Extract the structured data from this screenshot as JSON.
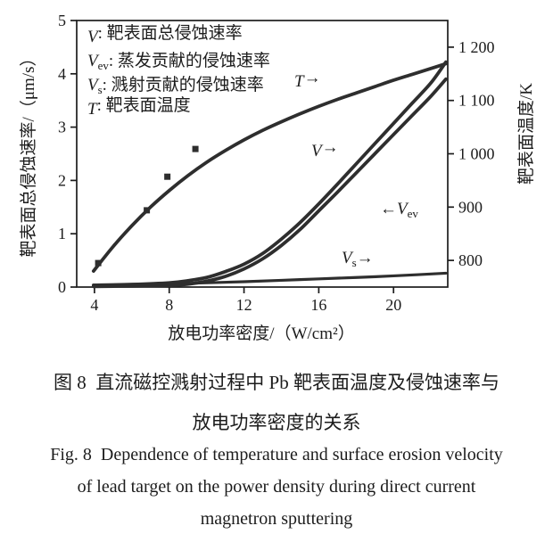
{
  "colors": {
    "curve": "#2e2e2e",
    "text": "#1c1c1c"
  },
  "legend": {
    "line1": {
      "sym": "V",
      "sub": "",
      "rest": ": 靶表面总侵蚀速率"
    },
    "line2": {
      "sym": "V",
      "sub": "ev",
      "rest": ": 蒸发贡献的侵蚀速率"
    },
    "line3": {
      "sym": "V",
      "sub": "s",
      "rest": ": 溅射贡献的侵蚀速率"
    },
    "line4": {
      "sym": "T",
      "sub": "",
      "rest": ": 靶表面温度"
    }
  },
  "curve_labels": {
    "T": {
      "pre": "",
      "sym": "T",
      "sub": "",
      "post": "→"
    },
    "V": {
      "pre": "",
      "sym": "V",
      "sub": "",
      "post": "→"
    },
    "Vev": {
      "pre": "←",
      "sym": "V",
      "sub": "ev",
      "post": ""
    },
    "Vs": {
      "pre": "",
      "sym": "V",
      "sub": "s",
      "post": "→"
    }
  },
  "captions": {
    "zh_line1": "图 8  直流磁控溅射过程中 Pb 靶表面温度及侵蚀速率与",
    "zh_line2": "放电功率密度的关系",
    "en_line1": "Fig. 8  Dependence of temperature and surface erosion velocity",
    "en_line2": "of lead target on the power density during direct current",
    "en_line3": "magnetron sputtering"
  },
  "chart_data": {
    "type": "line",
    "x_label": "放电功率密度/（W/cm²）",
    "y_left_label": "靶表面总侵蚀速率/（μm/s）",
    "y_right_label": "靶表面温度/K",
    "grid": false,
    "legend_position": "top-left-inside",
    "x_axis": {
      "min": 3.05,
      "max": 22.9,
      "ticks": [
        {
          "v": 4,
          "label": "4"
        },
        {
          "v": 8,
          "label": "8"
        },
        {
          "v": 12,
          "label": "12"
        },
        {
          "v": 16,
          "label": "16"
        },
        {
          "v": 20,
          "label": "20"
        }
      ]
    },
    "y_left_axis": {
      "min": 0,
      "max": 5,
      "ticks": [
        {
          "v": 0,
          "label": "0"
        },
        {
          "v": 1,
          "label": "1"
        },
        {
          "v": 2,
          "label": "2"
        },
        {
          "v": 3,
          "label": "3"
        },
        {
          "v": 4,
          "label": "4"
        },
        {
          "v": 5,
          "label": "5"
        }
      ]
    },
    "y_right_axis": {
      "min": 750,
      "max": 1250,
      "ticks": [
        {
          "v": 800,
          "label": "800"
        },
        {
          "v": 900,
          "label": "900"
        },
        {
          "v": 1000,
          "label": "1 000"
        },
        {
          "v": 1100,
          "label": "1 100"
        },
        {
          "v": 1200,
          "label": "1 200"
        }
      ]
    },
    "series": [
      {
        "name": "T-surface-temperature",
        "axis": "right",
        "width": 3.8,
        "points": [
          [
            3.95,
            780
          ],
          [
            5,
            826
          ],
          [
            6,
            865
          ],
          [
            7,
            900
          ],
          [
            8,
            931
          ],
          [
            9,
            959
          ],
          [
            10,
            984
          ],
          [
            11,
            1006
          ],
          [
            12,
            1026
          ],
          [
            13,
            1044
          ],
          [
            14,
            1060
          ],
          [
            15,
            1075
          ],
          [
            16,
            1089
          ],
          [
            17,
            1102
          ],
          [
            18,
            1114
          ],
          [
            19,
            1126
          ],
          [
            20,
            1138
          ],
          [
            21,
            1149
          ],
          [
            22,
            1160
          ],
          [
            22.8,
            1169
          ]
        ]
      },
      {
        "name": "V-total-erosion-rate",
        "axis": "left",
        "width": 3.8,
        "points": [
          [
            3.95,
            0.035
          ],
          [
            6,
            0.05
          ],
          [
            8,
            0.08
          ],
          [
            9,
            0.12
          ],
          [
            10,
            0.18
          ],
          [
            11,
            0.29
          ],
          [
            12,
            0.43
          ],
          [
            13,
            0.63
          ],
          [
            14,
            0.9
          ],
          [
            15,
            1.21
          ],
          [
            16,
            1.56
          ],
          [
            17,
            1.93
          ],
          [
            18,
            2.31
          ],
          [
            19,
            2.69
          ],
          [
            20,
            3.07
          ],
          [
            21,
            3.45
          ],
          [
            22,
            3.83
          ],
          [
            22.8,
            4.22
          ]
        ]
      },
      {
        "name": "Vev-evaporation-erosion-rate",
        "axis": "left",
        "width": 3.8,
        "points": [
          [
            3.95,
            0.01
          ],
          [
            6,
            0.02
          ],
          [
            8,
            0.03
          ],
          [
            9,
            0.055
          ],
          [
            10,
            0.11
          ],
          [
            11,
            0.2
          ],
          [
            12,
            0.34
          ],
          [
            13,
            0.53
          ],
          [
            14,
            0.78
          ],
          [
            15,
            1.08
          ],
          [
            16,
            1.43
          ],
          [
            17,
            1.78
          ],
          [
            18,
            2.14
          ],
          [
            19,
            2.5
          ],
          [
            20,
            2.86
          ],
          [
            21,
            3.22
          ],
          [
            22,
            3.58
          ],
          [
            22.8,
            3.9
          ]
        ]
      },
      {
        "name": "Vs-sputtering-erosion-rate",
        "axis": "left",
        "width": 3.2,
        "points": [
          [
            3.95,
            0.03
          ],
          [
            6,
            0.045
          ],
          [
            9,
            0.07
          ],
          [
            12,
            0.1
          ],
          [
            15,
            0.14
          ],
          [
            18,
            0.18
          ],
          [
            20,
            0.21
          ],
          [
            22.8,
            0.26
          ]
        ]
      },
      {
        "name": "T-measured-points",
        "axis": "right",
        "marker": "square",
        "points": [
          [
            4.2,
            795
          ],
          [
            6.8,
            894
          ],
          [
            7.9,
            957
          ],
          [
            9.4,
            1009
          ]
        ]
      }
    ]
  }
}
